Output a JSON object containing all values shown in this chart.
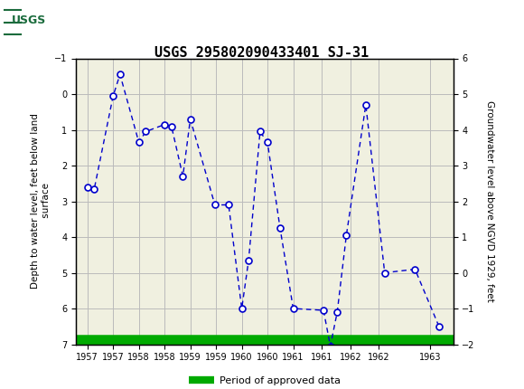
{
  "title": "USGS 295802090433401 SJ-31",
  "ylabel_left": "Depth to water level, feet below land\n surface",
  "ylabel_right": "Groundwater level above NGVD 1929, feet",
  "xlabel_ticks": [
    "1957",
    "1957",
    "1958",
    "1958",
    "1959",
    "1959",
    "1960",
    "1960",
    "1961",
    "1961",
    "1962",
    "1962",
    "1963"
  ],
  "x_tick_positions": [
    1956.75,
    1957.2,
    1957.65,
    1958.1,
    1958.55,
    1959.0,
    1959.45,
    1959.9,
    1960.35,
    1960.85,
    1961.35,
    1961.85,
    1962.75
  ],
  "xlim": [
    1956.55,
    1963.15
  ],
  "ylim_left_bottom": 7.0,
  "ylim_left_top": -1.0,
  "ylim_right_top": 6.0,
  "ylim_right_bottom": -2.0,
  "header_color": "#1a6b3c",
  "line_color": "#0000cc",
  "marker_facecolor": "white",
  "marker_edgecolor": "#0000cc",
  "grid_color": "#bbbbbb",
  "bg_color": "#e8e8d8",
  "plot_bg": "#f0f0e0",
  "legend_label": "Period of approved data",
  "legend_color": "#00aa00",
  "x_data": [
    1956.75,
    1956.87,
    1957.2,
    1957.32,
    1957.65,
    1957.77,
    1958.1,
    1958.22,
    1958.42,
    1958.55,
    1958.98,
    1959.22,
    1959.45,
    1959.57,
    1959.77,
    1959.9,
    1960.12,
    1960.35,
    1960.88,
    1961.0,
    1961.12,
    1961.28,
    1961.62,
    1961.95,
    1962.48,
    1962.9
  ],
  "y_data": [
    2.6,
    2.65,
    0.05,
    -0.55,
    1.35,
    1.05,
    0.85,
    0.9,
    2.3,
    0.7,
    3.1,
    3.1,
    6.0,
    4.65,
    1.05,
    1.35,
    3.75,
    6.0,
    6.05,
    7.05,
    6.1,
    3.95,
    0.3,
    5.0,
    4.9,
    6.5
  ],
  "title_fontsize": 11,
  "tick_fontsize": 7,
  "ylabel_fontsize": 7.5
}
